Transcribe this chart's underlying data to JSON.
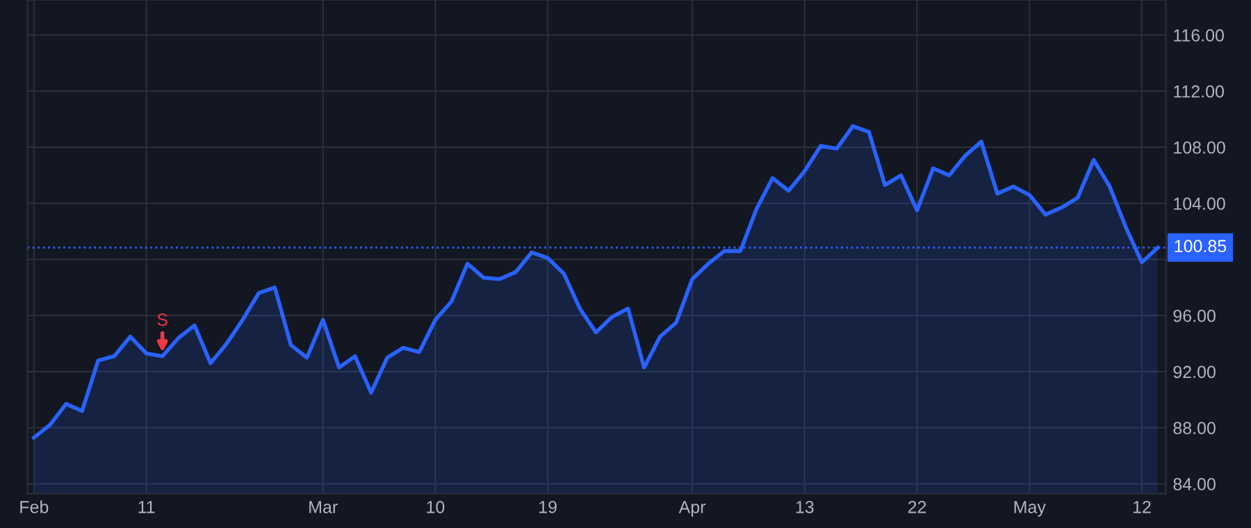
{
  "chart_data": {
    "type": "area",
    "categories": [
      "Feb",
      null,
      null,
      null,
      null,
      null,
      null,
      "11",
      null,
      null,
      null,
      null,
      null,
      null,
      null,
      null,
      null,
      null,
      "Mar",
      null,
      null,
      null,
      null,
      null,
      null,
      "10",
      null,
      null,
      null,
      null,
      null,
      null,
      "19",
      null,
      null,
      null,
      null,
      null,
      null,
      null,
      null,
      "Apr",
      null,
      null,
      null,
      null,
      null,
      null,
      "13",
      null,
      null,
      null,
      null,
      null,
      null,
      "22",
      null,
      null,
      null,
      null,
      null,
      null,
      "May",
      null,
      null,
      null,
      null,
      null,
      null,
      "12",
      null
    ],
    "series": [
      {
        "color": "#2962ff",
        "values": [
          87.3,
          88.2,
          89.7,
          89.2,
          92.8,
          93.1,
          94.5,
          93.3,
          93.1,
          94.4,
          95.3,
          92.6,
          94.0,
          95.7,
          97.6,
          98.0,
          93.9,
          93.0,
          95.7,
          92.3,
          93.1,
          90.5,
          93.0,
          93.7,
          93.4,
          95.7,
          97.0,
          99.7,
          98.7,
          98.6,
          99.1,
          100.5,
          100.1,
          99.0,
          96.5,
          94.8,
          95.9,
          96.5,
          92.3,
          94.5,
          95.5,
          98.6,
          99.7,
          100.6,
          100.6,
          103.6,
          105.8,
          104.9,
          106.3,
          108.1,
          107.9,
          109.5,
          109.1,
          105.3,
          106.0,
          103.5,
          106.5,
          106.0,
          107.4,
          108.4,
          104.7,
          105.2,
          104.6,
          103.2,
          103.7,
          104.4,
          107.1,
          105.2,
          102.3,
          99.8,
          100.85
        ]
      }
    ],
    "ylim": [
      83.3,
      118.5
    ],
    "yticks": [
      {
        "value": 84,
        "label": "84.00"
      },
      {
        "value": 88,
        "label": "88.00"
      },
      {
        "value": 92,
        "label": "92.00"
      },
      {
        "value": 96,
        "label": "96.00"
      },
      {
        "value": 100,
        "label": null
      },
      {
        "value": 104,
        "label": "104.00"
      },
      {
        "value": 108,
        "label": "108.00"
      },
      {
        "value": 112,
        "label": "112.00"
      },
      {
        "value": 116,
        "label": "116.00"
      }
    ],
    "ref_lines": [
      {
        "axis": "y",
        "value": 100.85,
        "label": "100.85",
        "color": "#2962ff",
        "line_style": "dotted"
      }
    ],
    "annotations": [
      {
        "text": "S",
        "y": 93.1
      }
    ],
    "grid": true
  }
}
